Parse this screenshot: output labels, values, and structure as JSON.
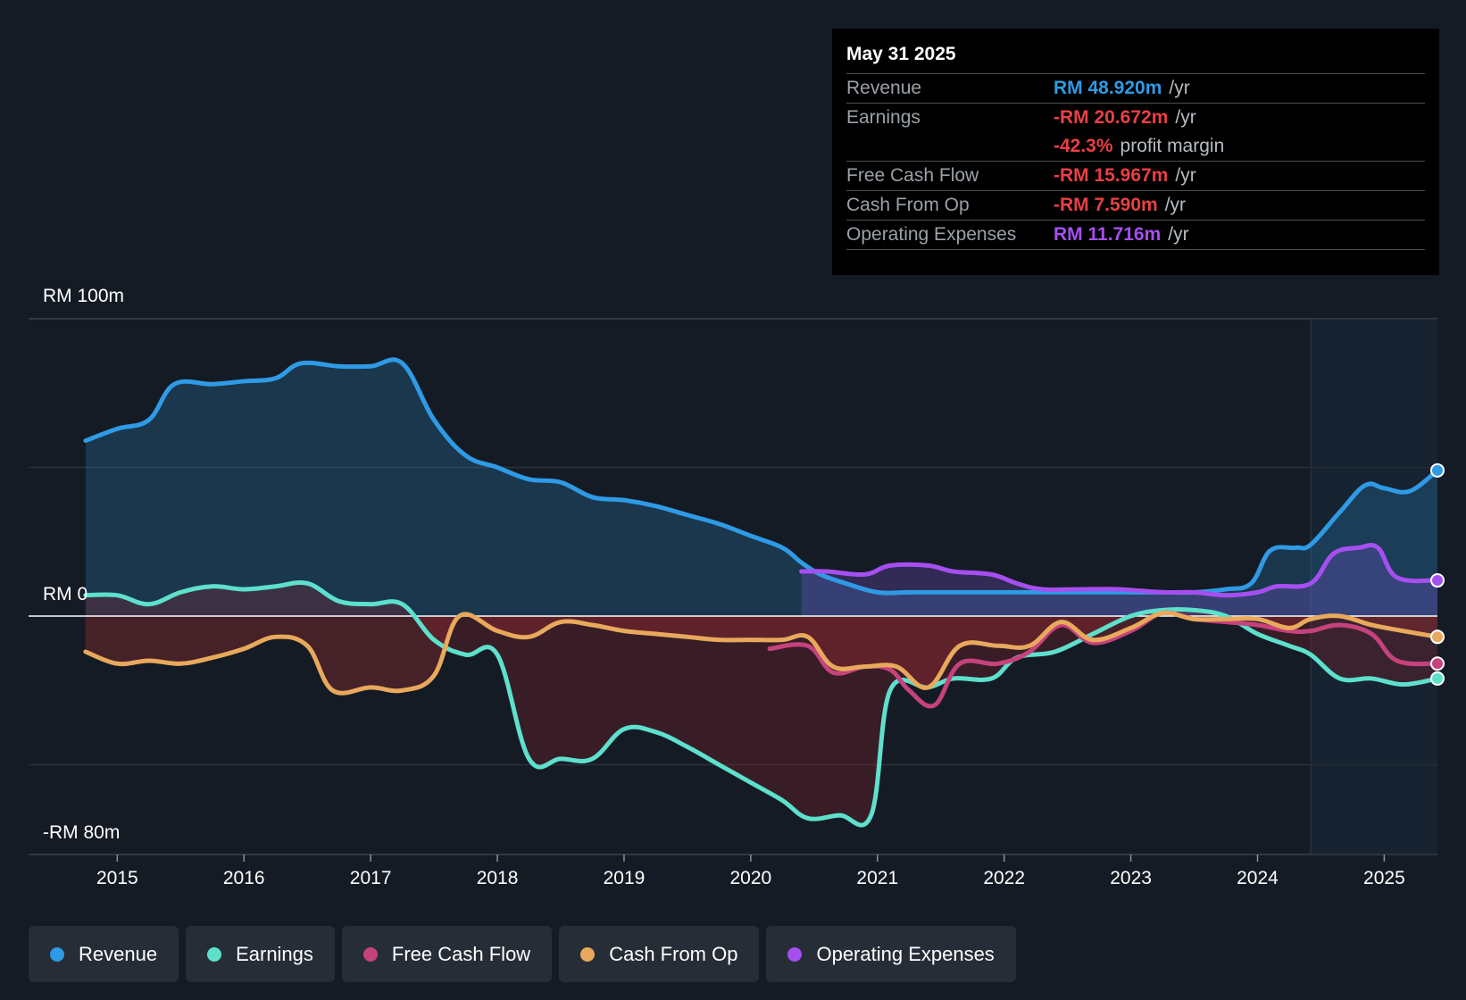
{
  "tooltip": {
    "date": "May 31 2025",
    "rows": [
      {
        "label": "Revenue",
        "value": "RM 48.920m",
        "unit": "/yr",
        "color": "#2f9ae5"
      },
      {
        "label": "Earnings",
        "value": "-RM 20.672m",
        "unit": "/yr",
        "color": "#e84045"
      },
      {
        "label": "",
        "value": "-42.3%",
        "unit": "profit margin",
        "color": "#e84045"
      },
      {
        "label": "Free Cash Flow",
        "value": "-RM 15.967m",
        "unit": "/yr",
        "color": "#e84045"
      },
      {
        "label": "Cash From Op",
        "value": "-RM 7.590m",
        "unit": "/yr",
        "color": "#e84045"
      },
      {
        "label": "Operating Expenses",
        "value": "RM 11.716m",
        "unit": "/yr",
        "color": "#a64ff0"
      }
    ]
  },
  "legend": [
    {
      "label": "Revenue",
      "color": "#2f9ae5"
    },
    {
      "label": "Earnings",
      "color": "#5de0cc"
    },
    {
      "label": "Free Cash Flow",
      "color": "#c6427d"
    },
    {
      "label": "Cash From Op",
      "color": "#e8a95c"
    },
    {
      "label": "Operating Expenses",
      "color": "#a64ff0"
    }
  ],
  "chart_data": {
    "type": "line",
    "title": "",
    "ylabel_top": "RM 100m",
    "ylabel_zero": "RM 0",
    "ylabel_bottom": "-RM 80m",
    "ylim": [
      -80,
      100
    ],
    "xlim": [
      2014.3,
      2025.42
    ],
    "xticks": [
      "2015",
      "2016",
      "2017",
      "2018",
      "2019",
      "2020",
      "2021",
      "2022",
      "2023",
      "2024",
      "2025"
    ],
    "forecast_start": 2024.42,
    "series": [
      {
        "name": "Revenue",
        "color": "#2f9ae5",
        "fill": true,
        "points": [
          [
            2014.75,
            59
          ],
          [
            2015.0,
            63
          ],
          [
            2015.25,
            66
          ],
          [
            2015.45,
            78
          ],
          [
            2015.75,
            78
          ],
          [
            2016.0,
            79
          ],
          [
            2016.25,
            80
          ],
          [
            2016.45,
            85
          ],
          [
            2016.75,
            84
          ],
          [
            2017.0,
            84
          ],
          [
            2017.25,
            85
          ],
          [
            2017.5,
            66
          ],
          [
            2017.75,
            54
          ],
          [
            2018.0,
            50
          ],
          [
            2018.25,
            46
          ],
          [
            2018.5,
            45
          ],
          [
            2018.75,
            40
          ],
          [
            2019.0,
            39
          ],
          [
            2019.25,
            37
          ],
          [
            2019.5,
            34
          ],
          [
            2019.75,
            31
          ],
          [
            2020.0,
            27
          ],
          [
            2020.25,
            23
          ],
          [
            2020.4,
            18
          ],
          [
            2020.55,
            14
          ],
          [
            2020.75,
            11
          ],
          [
            2021.0,
            8
          ],
          [
            2021.25,
            8
          ],
          [
            2021.5,
            8
          ],
          [
            2021.75,
            8
          ],
          [
            2022.0,
            8
          ],
          [
            2022.25,
            8
          ],
          [
            2022.5,
            8
          ],
          [
            2022.75,
            8
          ],
          [
            2023.0,
            8
          ],
          [
            2023.25,
            8
          ],
          [
            2023.5,
            8
          ],
          [
            2023.75,
            9
          ],
          [
            2023.95,
            11
          ],
          [
            2024.1,
            22
          ],
          [
            2024.3,
            23
          ],
          [
            2024.42,
            24
          ],
          [
            2024.65,
            35
          ],
          [
            2024.85,
            44
          ],
          [
            2025.0,
            43
          ],
          [
            2025.2,
            42
          ],
          [
            2025.42,
            49
          ]
        ]
      },
      {
        "name": "Operating Expenses",
        "color": "#a64ff0",
        "fill": true,
        "points": [
          [
            2020.4,
            15
          ],
          [
            2020.6,
            15
          ],
          [
            2020.9,
            14
          ],
          [
            2021.1,
            17
          ],
          [
            2021.4,
            17
          ],
          [
            2021.6,
            15
          ],
          [
            2021.9,
            14
          ],
          [
            2022.1,
            11
          ],
          [
            2022.3,
            9
          ],
          [
            2022.6,
            9
          ],
          [
            2022.9,
            9
          ],
          [
            2023.25,
            8
          ],
          [
            2023.5,
            8
          ],
          [
            2023.75,
            7
          ],
          [
            2024.0,
            8
          ],
          [
            2024.15,
            10
          ],
          [
            2024.42,
            11
          ],
          [
            2024.6,
            21
          ],
          [
            2024.8,
            23
          ],
          [
            2024.95,
            23
          ],
          [
            2025.1,
            13
          ],
          [
            2025.42,
            12
          ]
        ]
      },
      {
        "name": "Earnings",
        "color": "#5de0cc",
        "fill": true,
        "points": [
          [
            2014.75,
            7
          ],
          [
            2015.0,
            7
          ],
          [
            2015.25,
            4
          ],
          [
            2015.5,
            8
          ],
          [
            2015.75,
            10
          ],
          [
            2016.0,
            9
          ],
          [
            2016.25,
            10
          ],
          [
            2016.5,
            11
          ],
          [
            2016.75,
            5
          ],
          [
            2017.0,
            4
          ],
          [
            2017.25,
            4
          ],
          [
            2017.5,
            -8
          ],
          [
            2017.75,
            -13
          ],
          [
            2018.0,
            -13
          ],
          [
            2018.25,
            -48
          ],
          [
            2018.5,
            -48
          ],
          [
            2018.75,
            -48
          ],
          [
            2019.0,
            -38
          ],
          [
            2019.25,
            -39
          ],
          [
            2019.5,
            -44
          ],
          [
            2019.75,
            -50
          ],
          [
            2020.0,
            -56
          ],
          [
            2020.25,
            -62
          ],
          [
            2020.45,
            -68
          ],
          [
            2020.7,
            -67
          ],
          [
            2020.95,
            -67
          ],
          [
            2021.1,
            -25
          ],
          [
            2021.4,
            -24
          ],
          [
            2021.6,
            -21
          ],
          [
            2021.9,
            -21
          ],
          [
            2022.1,
            -14
          ],
          [
            2022.4,
            -12
          ],
          [
            2022.7,
            -6
          ],
          [
            2023.0,
            0
          ],
          [
            2023.25,
            2
          ],
          [
            2023.5,
            2
          ],
          [
            2023.75,
            0
          ],
          [
            2024.0,
            -6
          ],
          [
            2024.25,
            -10
          ],
          [
            2024.42,
            -13
          ],
          [
            2024.65,
            -21
          ],
          [
            2024.9,
            -21
          ],
          [
            2025.15,
            -23
          ],
          [
            2025.42,
            -21
          ]
        ]
      },
      {
        "name": "Free Cash Flow",
        "color": "#c6427d",
        "fill": false,
        "points": [
          [
            2020.15,
            -11
          ],
          [
            2020.45,
            -10
          ],
          [
            2020.65,
            -19
          ],
          [
            2020.9,
            -17
          ],
          [
            2021.1,
            -18
          ],
          [
            2021.25,
            -25
          ],
          [
            2021.45,
            -30
          ],
          [
            2021.65,
            -16
          ],
          [
            2021.95,
            -16
          ],
          [
            2022.2,
            -12
          ],
          [
            2022.45,
            -3
          ],
          [
            2022.7,
            -9
          ],
          [
            2023.0,
            -5
          ],
          [
            2023.25,
            1
          ],
          [
            2023.5,
            -1
          ],
          [
            2023.75,
            -2
          ],
          [
            2024.0,
            -3
          ],
          [
            2024.25,
            -5
          ],
          [
            2024.42,
            -5
          ],
          [
            2024.65,
            -3
          ],
          [
            2024.9,
            -6
          ],
          [
            2025.1,
            -15
          ],
          [
            2025.42,
            -16
          ]
        ]
      },
      {
        "name": "Cash From Op",
        "color": "#e8a95c",
        "fill": true,
        "points": [
          [
            2014.75,
            -12
          ],
          [
            2015.0,
            -16
          ],
          [
            2015.25,
            -15
          ],
          [
            2015.5,
            -16
          ],
          [
            2015.75,
            -14
          ],
          [
            2016.0,
            -11
          ],
          [
            2016.25,
            -7
          ],
          [
            2016.5,
            -10
          ],
          [
            2016.7,
            -25
          ],
          [
            2017.0,
            -24
          ],
          [
            2017.25,
            -25
          ],
          [
            2017.5,
            -20
          ],
          [
            2017.7,
            0
          ],
          [
            2018.0,
            -5
          ],
          [
            2018.25,
            -7
          ],
          [
            2018.5,
            -2
          ],
          [
            2018.75,
            -3
          ],
          [
            2019.0,
            -5
          ],
          [
            2019.25,
            -6
          ],
          [
            2019.5,
            -7
          ],
          [
            2019.75,
            -8
          ],
          [
            2020.0,
            -8
          ],
          [
            2020.25,
            -8
          ],
          [
            2020.45,
            -7
          ],
          [
            2020.65,
            -17
          ],
          [
            2020.9,
            -17
          ],
          [
            2021.15,
            -17
          ],
          [
            2021.4,
            -24
          ],
          [
            2021.65,
            -10
          ],
          [
            2021.95,
            -10
          ],
          [
            2022.2,
            -10
          ],
          [
            2022.45,
            -2
          ],
          [
            2022.7,
            -8
          ],
          [
            2023.0,
            -4
          ],
          [
            2023.25,
            1
          ],
          [
            2023.5,
            -1
          ],
          [
            2023.75,
            -1
          ],
          [
            2024.0,
            -1
          ],
          [
            2024.25,
            -4
          ],
          [
            2024.42,
            -1
          ],
          [
            2024.65,
            0
          ],
          [
            2024.9,
            -3
          ],
          [
            2025.15,
            -5
          ],
          [
            2025.42,
            -7
          ]
        ]
      }
    ]
  }
}
